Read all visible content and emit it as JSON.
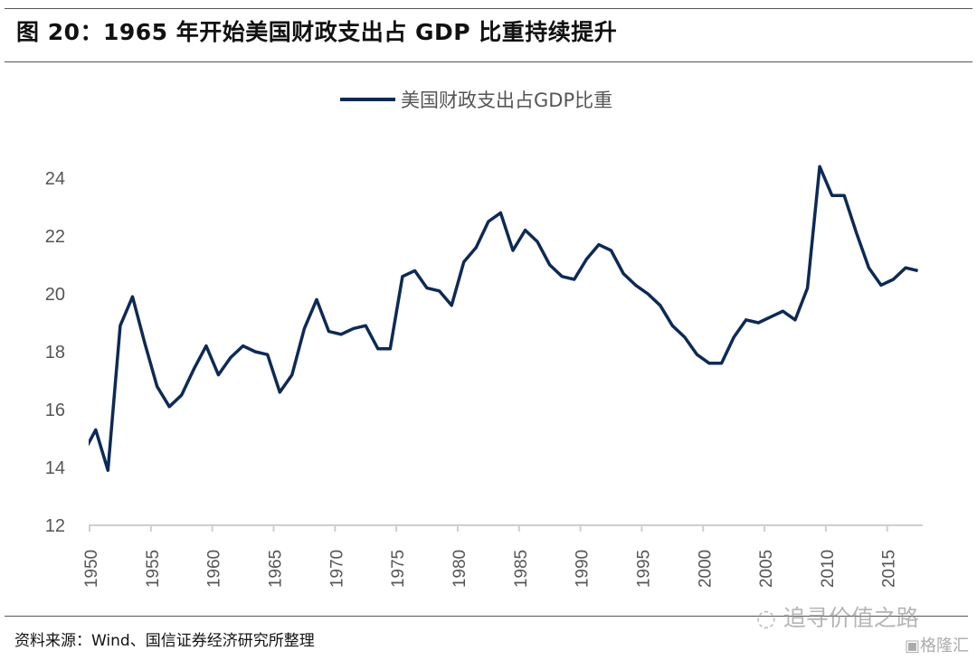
{
  "header": {
    "title": "图 20：1965 年开始美国财政支出占 GDP 比重持续提升"
  },
  "footer": {
    "source": "资料来源：Wind、国信证券经济研究所整理"
  },
  "watermark": {
    "text": "追寻价值之路",
    "icon": "wechat-icon",
    "logo": "格隆汇",
    "logo_icon": "gelonghui-g-icon"
  },
  "chart_data": {
    "type": "line",
    "title": "",
    "xlabel": "",
    "ylabel": "",
    "ylim": [
      12,
      24.6
    ],
    "yticks": [
      12,
      14,
      16,
      18,
      20,
      22,
      24
    ],
    "xticks": [
      1950,
      1955,
      1960,
      1965,
      1970,
      1975,
      1980,
      1985,
      1990,
      1995,
      2000,
      2005,
      2010,
      2015
    ],
    "grid": false,
    "legend": "top-center",
    "color": "#0d2a55",
    "series": [
      {
        "name": "美国财政支出占GDP比重",
        "x": [
          1949,
          1950,
          1951,
          1952,
          1953,
          1954,
          1955,
          1956,
          1957,
          1958,
          1959,
          1960,
          1961,
          1962,
          1963,
          1964,
          1965,
          1966,
          1967,
          1968,
          1969,
          1970,
          1971,
          1972,
          1973,
          1974,
          1975,
          1976,
          1977,
          1978,
          1979,
          1980,
          1981,
          1982,
          1983,
          1984,
          1985,
          1986,
          1987,
          1988,
          1989,
          1990,
          1991,
          1992,
          1993,
          1994,
          1995,
          1996,
          1997,
          1998,
          1999,
          2000,
          2001,
          2002,
          2003,
          2004,
          2005,
          2006,
          2007,
          2008,
          2009,
          2010,
          2011,
          2012,
          2013,
          2014,
          2015,
          2016,
          2017
        ],
        "values": [
          14.5,
          15.3,
          13.9,
          18.9,
          19.9,
          18.3,
          16.8,
          16.1,
          16.5,
          17.4,
          18.2,
          17.2,
          17.8,
          18.2,
          18.0,
          17.9,
          16.6,
          17.2,
          18.8,
          19.8,
          18.7,
          18.6,
          18.8,
          18.9,
          18.1,
          18.1,
          20.6,
          20.8,
          20.2,
          20.1,
          19.6,
          21.1,
          21.6,
          22.5,
          22.8,
          21.5,
          22.2,
          21.8,
          21.0,
          20.6,
          20.5,
          21.2,
          21.7,
          21.5,
          20.7,
          20.3,
          20.0,
          19.6,
          18.9,
          18.5,
          17.9,
          17.6,
          17.6,
          18.5,
          19.1,
          19.0,
          19.2,
          19.4,
          19.1,
          20.2,
          24.4,
          23.4,
          23.4,
          22.1,
          20.9,
          20.3,
          20.5,
          20.9,
          20.8
        ]
      }
    ]
  }
}
